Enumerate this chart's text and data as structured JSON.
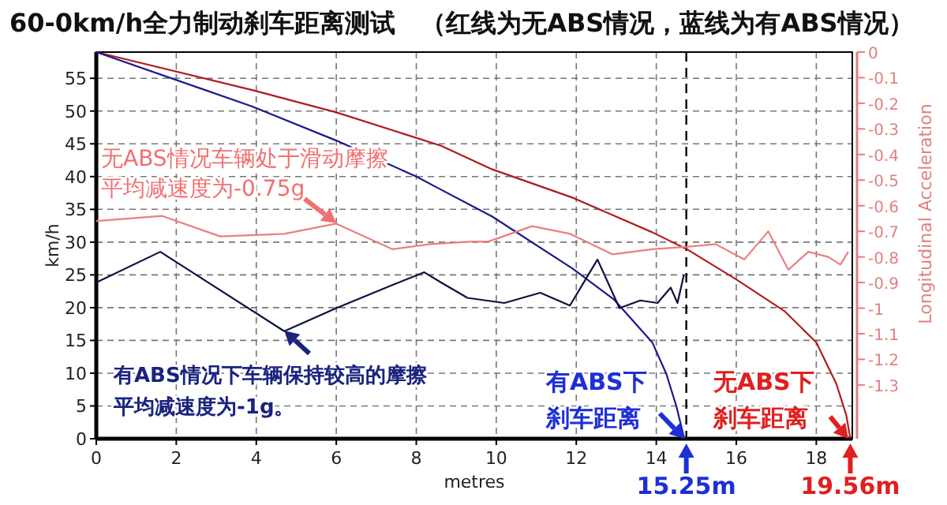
{
  "chart_data": {
    "type": "line",
    "title": "60-0km/h全力制动刹车距离测试　（红线为无ABS情况，蓝线为有ABS情况）",
    "xlabel": "metres",
    "ylabel": "km/h",
    "y2label": "Longitudinal Acceleration",
    "xlim": [
      0,
      18.9
    ],
    "xticks": [
      0,
      2,
      4,
      6,
      8,
      10,
      12,
      14,
      16,
      18
    ],
    "ylim": [
      0,
      59
    ],
    "yticks": [
      0,
      5,
      10,
      15,
      20,
      25,
      30,
      35,
      40,
      45,
      50,
      55
    ],
    "y2lim": [
      -1.51,
      0
    ],
    "y2ticks": [
      0,
      -0.1,
      -0.2,
      -0.3,
      -0.4,
      -0.5,
      -0.6,
      -0.7,
      -0.8,
      -0.9,
      -1,
      -1.1,
      -1.2,
      -1.3
    ],
    "grid": true,
    "line_style": "solid",
    "marker": "none",
    "series": [
      {
        "color": "#b01c1c",
        "x": [
          0,
          3.9,
          6,
          8.62,
          9.9,
          11.9,
          13.9,
          14.8,
          16.0,
          17.2,
          18.0,
          18.5,
          18.75,
          18.85
        ],
        "values": [
          59,
          53.2,
          49.8,
          44.7,
          41.1,
          36.8,
          31.5,
          28.8,
          24.3,
          19.5,
          14.7,
          8.4,
          3.6,
          0
        ]
      },
      {
        "color": "#1a1a8c",
        "x": [
          0,
          3.9,
          6,
          8.0,
          8.62,
          9.9,
          11.9,
          12.95,
          13.9,
          14.25,
          14.5,
          14.7
        ],
        "values": [
          59,
          50.7,
          45.5,
          40,
          38.0,
          33.9,
          26,
          21.2,
          14.7,
          9.9,
          5,
          0
        ]
      },
      {
        "color": "#e88080",
        "axis": "y2",
        "x": [
          0,
          1.65,
          3.1,
          4.7,
          6.0,
          7.4,
          8.35,
          9.4,
          9.8,
          10.9,
          11.85,
          12.9,
          13.9,
          14.8,
          15.48,
          16.2,
          16.8,
          17.3,
          17.8,
          18.3,
          18.6,
          18.8
        ],
        "values": [
          -0.66,
          -0.64,
          -0.72,
          -0.71,
          -0.67,
          -0.77,
          -0.75,
          -0.74,
          -0.74,
          -0.68,
          -0.71,
          -0.79,
          -0.77,
          -0.76,
          -0.75,
          -0.81,
          -0.7,
          -0.85,
          -0.78,
          -0.8,
          -0.83,
          -0.78
        ]
      },
      {
        "color": "#101040",
        "axis": "y2",
        "x": [
          0,
          1.6,
          4.7,
          6.0,
          7.4,
          8.2,
          8.62,
          9.28,
          10.2,
          11.1,
          11.84,
          12.53,
          13.08,
          13.6,
          14.03,
          14.36,
          14.53,
          14.69
        ],
        "values": [
          -0.9,
          -0.78,
          -1.09,
          -1.0,
          -0.91,
          -0.86,
          -0.9,
          -0.96,
          -0.98,
          -0.94,
          -0.99,
          -0.81,
          -1.0,
          -0.97,
          -0.98,
          -0.92,
          -0.98,
          -0.87
        ]
      }
    ],
    "ref_lines": [
      {
        "axis": "x",
        "value": 14.75,
        "color": "#000000",
        "line_style": "dashed"
      }
    ],
    "annotations": [
      {
        "text": "无ABS情况车辆处于滑动摩擦平均减速度为-0.75g",
        "x": 6,
        "y": 32.9
      },
      {
        "text": "有ABS情况下车辆保持较高的摩擦平均减速度为-1g。",
        "x": 4.7,
        "y": 16.5
      },
      {
        "text": "有ABS下刹车距离",
        "x": 14.7,
        "y": 0
      },
      {
        "text": "无ABS下刹车距离",
        "x": 18.8,
        "y": 0
      },
      {
        "text": "15.25m",
        "x": 14.75,
        "y": 0
      },
      {
        "text": "19.56m",
        "x": 18.85,
        "y": 0
      }
    ]
  }
}
